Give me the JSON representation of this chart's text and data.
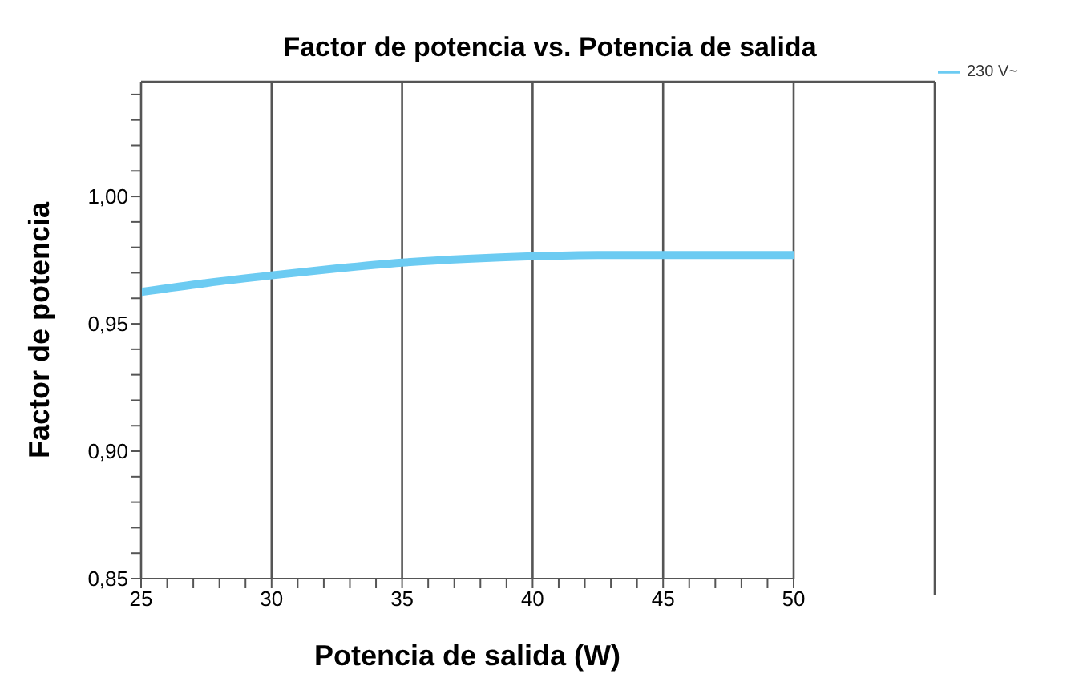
{
  "chart_data": {
    "type": "line",
    "title": "Factor de potencia vs. Potencia de salida",
    "xlabel": "Potencia de salida (W)",
    "ylabel": "Factor de potencia",
    "x": [
      25,
      27.5,
      30,
      32.5,
      35,
      37.5,
      40,
      42.5,
      45,
      47.5,
      50
    ],
    "series": [
      {
        "name": "230 V~",
        "color": "#6ccbf2",
        "values": [
          0.9625,
          0.966,
          0.969,
          0.9717,
          0.974,
          0.9755,
          0.9765,
          0.977,
          0.977,
          0.977,
          0.977
        ]
      }
    ],
    "xlim": [
      25,
      50
    ],
    "xticks": [
      25,
      {
        "value": 26,
        "label": null
      },
      {
        "value": 27,
        "label": null
      },
      {
        "value": 28,
        "label": null
      },
      {
        "value": 29,
        "label": null
      },
      30,
      {
        "value": 31,
        "label": null
      },
      {
        "value": 32,
        "label": null
      },
      {
        "value": 33,
        "label": null
      },
      {
        "value": 34,
        "label": null
      },
      35,
      {
        "value": 36,
        "label": null
      },
      {
        "value": 37,
        "label": null
      },
      {
        "value": 38,
        "label": null
      },
      {
        "value": 39,
        "label": null
      },
      40,
      {
        "value": 41,
        "label": null
      },
      {
        "value": 42,
        "label": null
      },
      {
        "value": 43,
        "label": null
      },
      {
        "value": 44,
        "label": null
      },
      45,
      {
        "value": 46,
        "label": null
      },
      {
        "value": 47,
        "label": null
      },
      {
        "value": 48,
        "label": null
      },
      {
        "value": 49,
        "label": null
      },
      50
    ],
    "ylim": [
      0.85,
      1.045
    ],
    "yticks": [
      {
        "value": 0.85,
        "label": "0,85"
      },
      {
        "value": 0.86,
        "label": null
      },
      {
        "value": 0.87,
        "label": null
      },
      {
        "value": 0.88,
        "label": null
      },
      {
        "value": 0.89,
        "label": null
      },
      {
        "value": 0.9,
        "label": "0,90"
      },
      {
        "value": 0.91,
        "label": null
      },
      {
        "value": 0.92,
        "label": null
      },
      {
        "value": 0.93,
        "label": null
      },
      {
        "value": 0.94,
        "label": null
      },
      {
        "value": 0.95,
        "label": "0,95"
      },
      {
        "value": 0.96,
        "label": null
      },
      {
        "value": 0.97,
        "label": null
      },
      {
        "value": 0.98,
        "label": null
      },
      {
        "value": 0.99,
        "label": null
      },
      {
        "value": 1.0,
        "label": "1,00"
      },
      {
        "value": 1.01,
        "label": null
      },
      {
        "value": 1.02,
        "label": null
      },
      {
        "value": 1.03,
        "label": null
      },
      {
        "value": 1.04,
        "label": null
      }
    ],
    "grid": true,
    "legend": "top right",
    "marker": "none",
    "line_style": "solid"
  }
}
